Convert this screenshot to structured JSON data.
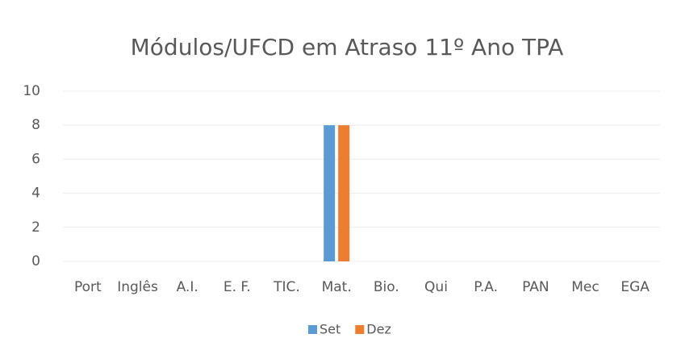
{
  "chart_data": {
    "type": "bar",
    "title": "Módulos/UFCD em Atraso 11º Ano TPA",
    "categories": [
      "Port",
      "Inglês",
      "A.I.",
      "E. F.",
      "TIC.",
      "Mat.",
      "Bio.",
      "Qui",
      "P.A.",
      "PAN",
      "Mec",
      "EGA"
    ],
    "series": [
      {
        "name": "Set",
        "color": "#5b9bd5",
        "values": [
          0,
          0,
          0,
          0,
          0,
          8,
          0,
          0,
          0,
          0,
          0,
          0
        ]
      },
      {
        "name": "Dez",
        "color": "#ed7d31",
        "values": [
          0,
          0,
          0,
          0,
          0,
          8,
          0,
          0,
          0,
          0,
          0,
          0
        ]
      }
    ],
    "ylim": [
      0,
      10
    ],
    "yticks": [
      0,
      2,
      4,
      6,
      8,
      10
    ],
    "grid": true,
    "legend": "bottom"
  }
}
